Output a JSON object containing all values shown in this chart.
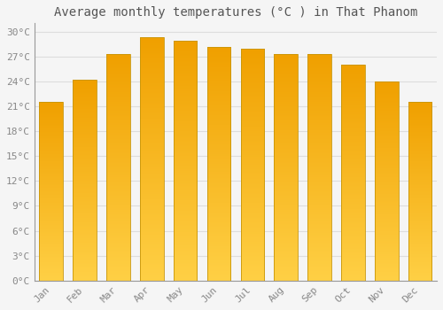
{
  "title": "Average monthly temperatures (°C ) in That Phanom",
  "months": [
    "Jan",
    "Feb",
    "Mar",
    "Apr",
    "May",
    "Jun",
    "Jul",
    "Aug",
    "Sep",
    "Oct",
    "Nov",
    "Dec"
  ],
  "values": [
    21.5,
    24.2,
    27.3,
    29.3,
    28.9,
    28.1,
    27.9,
    27.3,
    27.3,
    26.0,
    24.0,
    21.5
  ],
  "ylim": [
    0,
    31
  ],
  "yticks": [
    0,
    3,
    6,
    9,
    12,
    15,
    18,
    21,
    24,
    27,
    30
  ],
  "ytick_labels": [
    "0°C",
    "3°C",
    "6°C",
    "9°C",
    "12°C",
    "15°C",
    "18°C",
    "21°C",
    "24°C",
    "27°C",
    "30°C"
  ],
  "background_color": "#f5f5f5",
  "plot_bg_color": "#f5f5f5",
  "grid_color": "#dddddd",
  "title_fontsize": 10,
  "tick_fontsize": 8,
  "tick_color": "#888888",
  "bar_color_bottom": "#FFD045",
  "bar_color_top": "#F0A000",
  "bar_edge_color": "#C8960A",
  "bar_width": 0.7,
  "title_color": "#555555"
}
